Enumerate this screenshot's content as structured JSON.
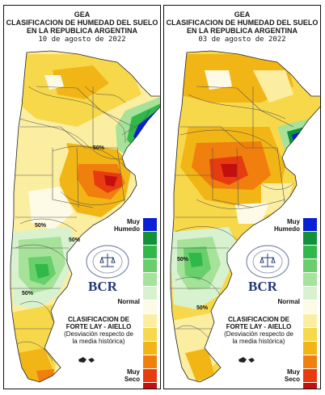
{
  "panels": [
    {
      "org": "GEA",
      "title_line1": "CLASIFICACION DE HUMEDAD DEL SUELO",
      "title_line2": "EN LA REPUBLICA ARGENTINA",
      "date": "10 de agosto de 2022",
      "contour_labels": [
        "50%",
        "50%",
        "50%",
        "50%"
      ]
    },
    {
      "org": "GEA",
      "title_line1": "CLASIFICACION DE HUMEDAD DEL SUELO",
      "title_line2": "EN LA REPUBLICA ARGENTINA",
      "date": "03 de agosto de 2022",
      "contour_labels": [
        "50%",
        "50%"
      ]
    }
  ],
  "legend": {
    "top_label_1": "Muy",
    "top_label_2": "Humedo",
    "mid_label": "Normal",
    "bottom_label_1": "Muy",
    "bottom_label_2": "Seco",
    "colors": [
      "#0a1fd6",
      "#12903a",
      "#31b84a",
      "#69cf6b",
      "#a6e29a",
      "#d8f2cf",
      "#fdfbe6",
      "#fbeea1",
      "#f7d84b",
      "#f2b516",
      "#f07f0e",
      "#e73b10",
      "#c30f0f"
    ]
  },
  "branding": {
    "logo_text": "BCR",
    "seal_text": "BOLSA DE COMERCIO DE ROSARIO"
  },
  "classification": {
    "line1": "CLASIFICACION DE",
    "line2": "FORTE LAY - AIELLO",
    "note1": "(Desviación respecto de",
    "note2": "la media histórica)"
  }
}
